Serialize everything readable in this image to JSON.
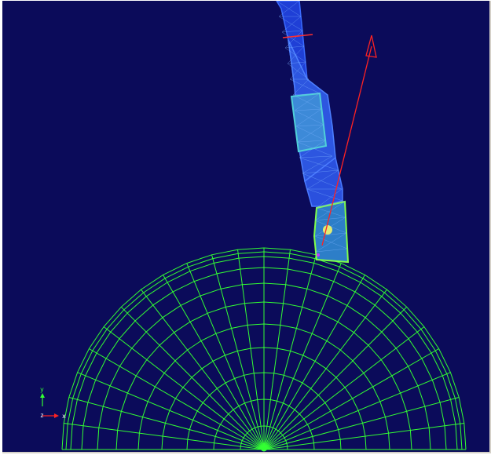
{
  "viewport": {
    "background": "#0b0b5a",
    "frame_color": "#d4d0c8"
  },
  "scene": {
    "gear_mesh_color": "#33ff33",
    "contact_point_color": "#cc33ff",
    "vector_color": "#ff2222"
  },
  "axes": {
    "y_label": "y",
    "z_label": "z",
    "x_label": "x",
    "y_color": "#33ff33",
    "x_color": "#ff2222",
    "z_color": "#ffffff"
  }
}
